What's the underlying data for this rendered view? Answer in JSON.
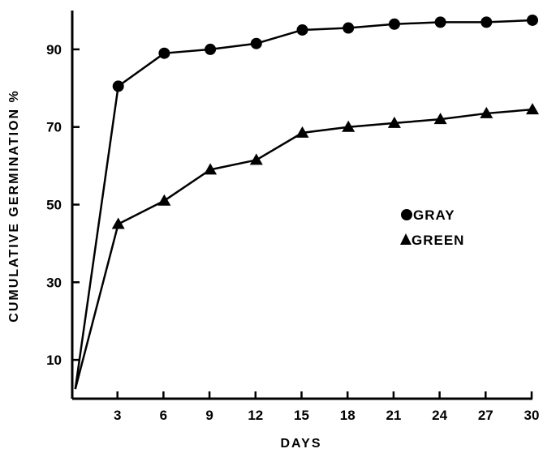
{
  "chart_data": {
    "type": "line",
    "title": "",
    "xlabel": "DAYS",
    "ylabel": "CUMULATIVE GERMINATION %",
    "xlim": [
      0,
      30
    ],
    "ylim": [
      0,
      100
    ],
    "x_ticks": [
      3,
      6,
      9,
      12,
      15,
      18,
      21,
      24,
      27,
      30
    ],
    "y_ticks": [
      10,
      30,
      50,
      70,
      90
    ],
    "grid": false,
    "legend_position": "right-middle",
    "series": [
      {
        "name": "GRAY",
        "marker": "circle",
        "color": "#000000",
        "points": [
          [
            0.2,
            2.5
          ],
          [
            3,
            80.5
          ],
          [
            6,
            89
          ],
          [
            9,
            90
          ],
          [
            12,
            91.5
          ],
          [
            15,
            95
          ],
          [
            18,
            95.5
          ],
          [
            21,
            96.5
          ],
          [
            24,
            97
          ],
          [
            27,
            97
          ],
          [
            30,
            97.5
          ]
        ]
      },
      {
        "name": "GREEN",
        "marker": "triangle",
        "color": "#000000",
        "points": [
          [
            0.2,
            2.5
          ],
          [
            3,
            45
          ],
          [
            6,
            51
          ],
          [
            9,
            59
          ],
          [
            12,
            61.5
          ],
          [
            15,
            68.5
          ],
          [
            18,
            70
          ],
          [
            21,
            71
          ],
          [
            24,
            72
          ],
          [
            27,
            73.5
          ],
          [
            30,
            74.5
          ]
        ]
      }
    ]
  }
}
